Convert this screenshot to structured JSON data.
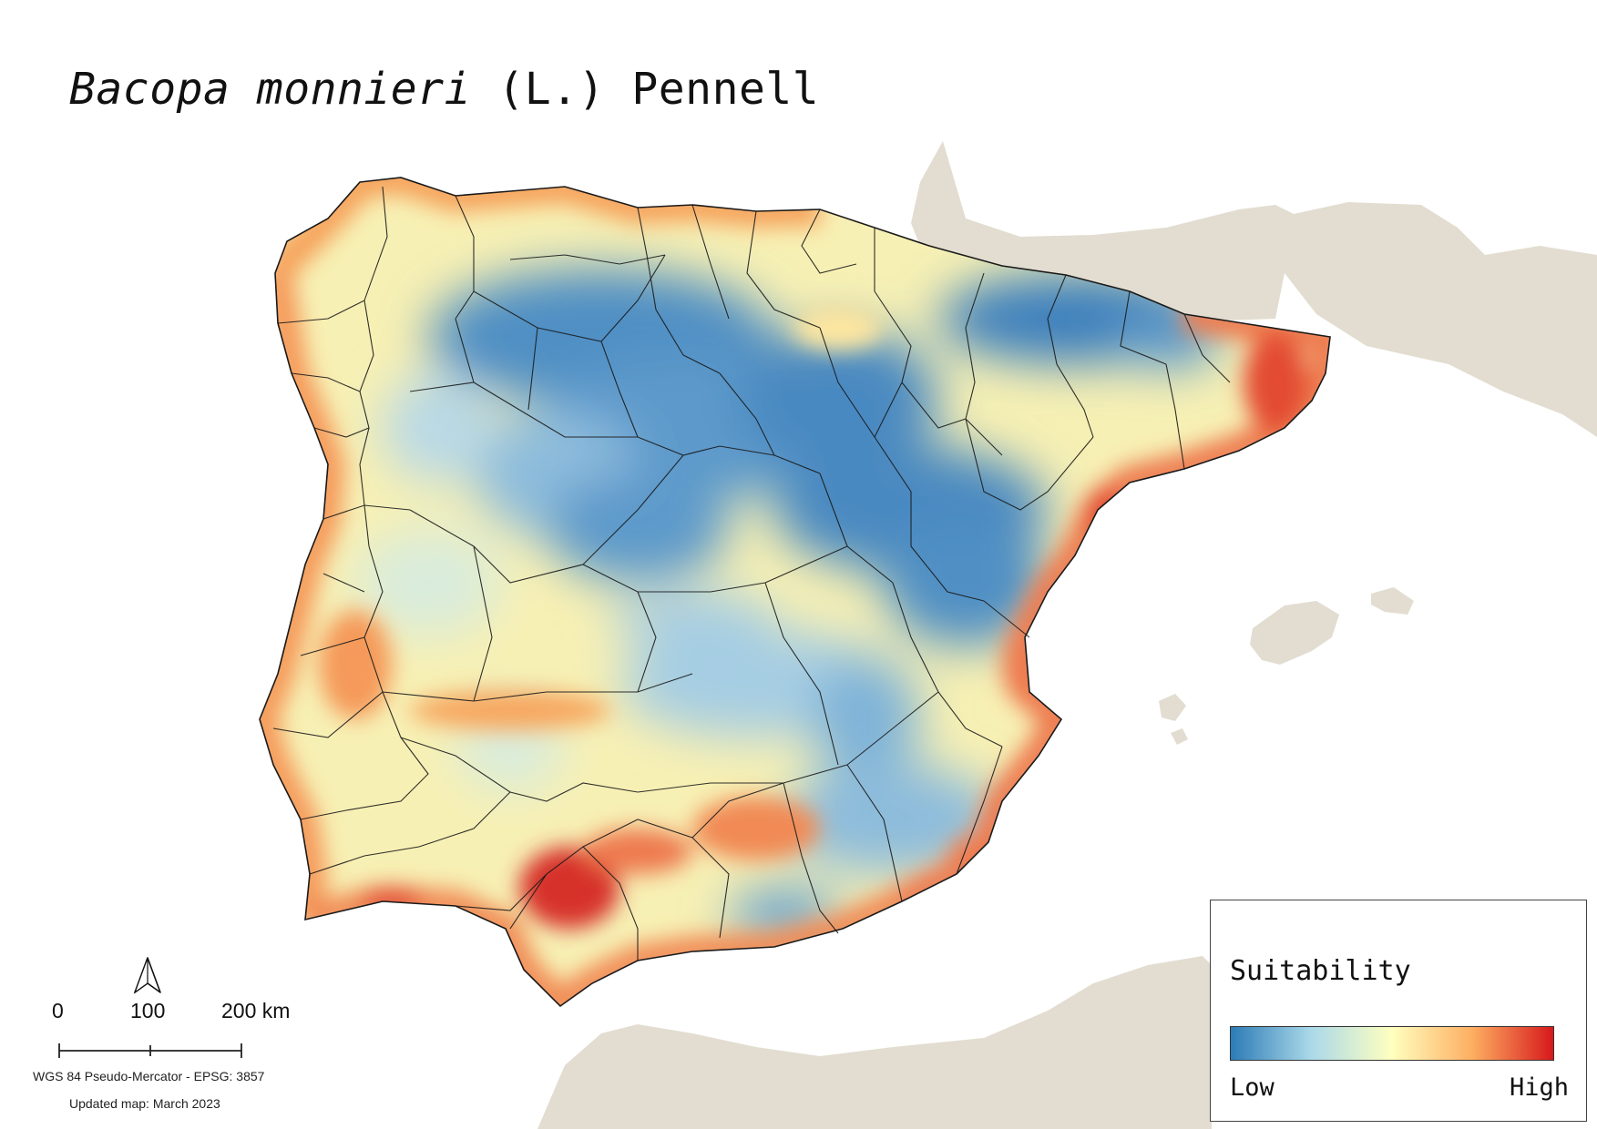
{
  "title": {
    "species": "Bacopa monnieri",
    "authority": "(L.) Pennell"
  },
  "legend": {
    "title": "Suitability",
    "low_label": "Low",
    "high_label": "High",
    "colors": [
      "#2c7bb6",
      "#abd9e9",
      "#ffffbf",
      "#fdae61",
      "#d7191c"
    ]
  },
  "scale_bar": {
    "ticks": [
      "0",
      "100",
      "200 km"
    ],
    "unit": "km"
  },
  "north_arrow": {
    "icon": "north-arrow-icon"
  },
  "crs_text": "WGS 84 Pseudo-Mercator  - EPSG: 3857",
  "updated_text": "Updated map: March 2023",
  "map_colors": {
    "land": "#e2ddd0",
    "sea": "#ffffff",
    "boundary": "#1a1a1a"
  }
}
